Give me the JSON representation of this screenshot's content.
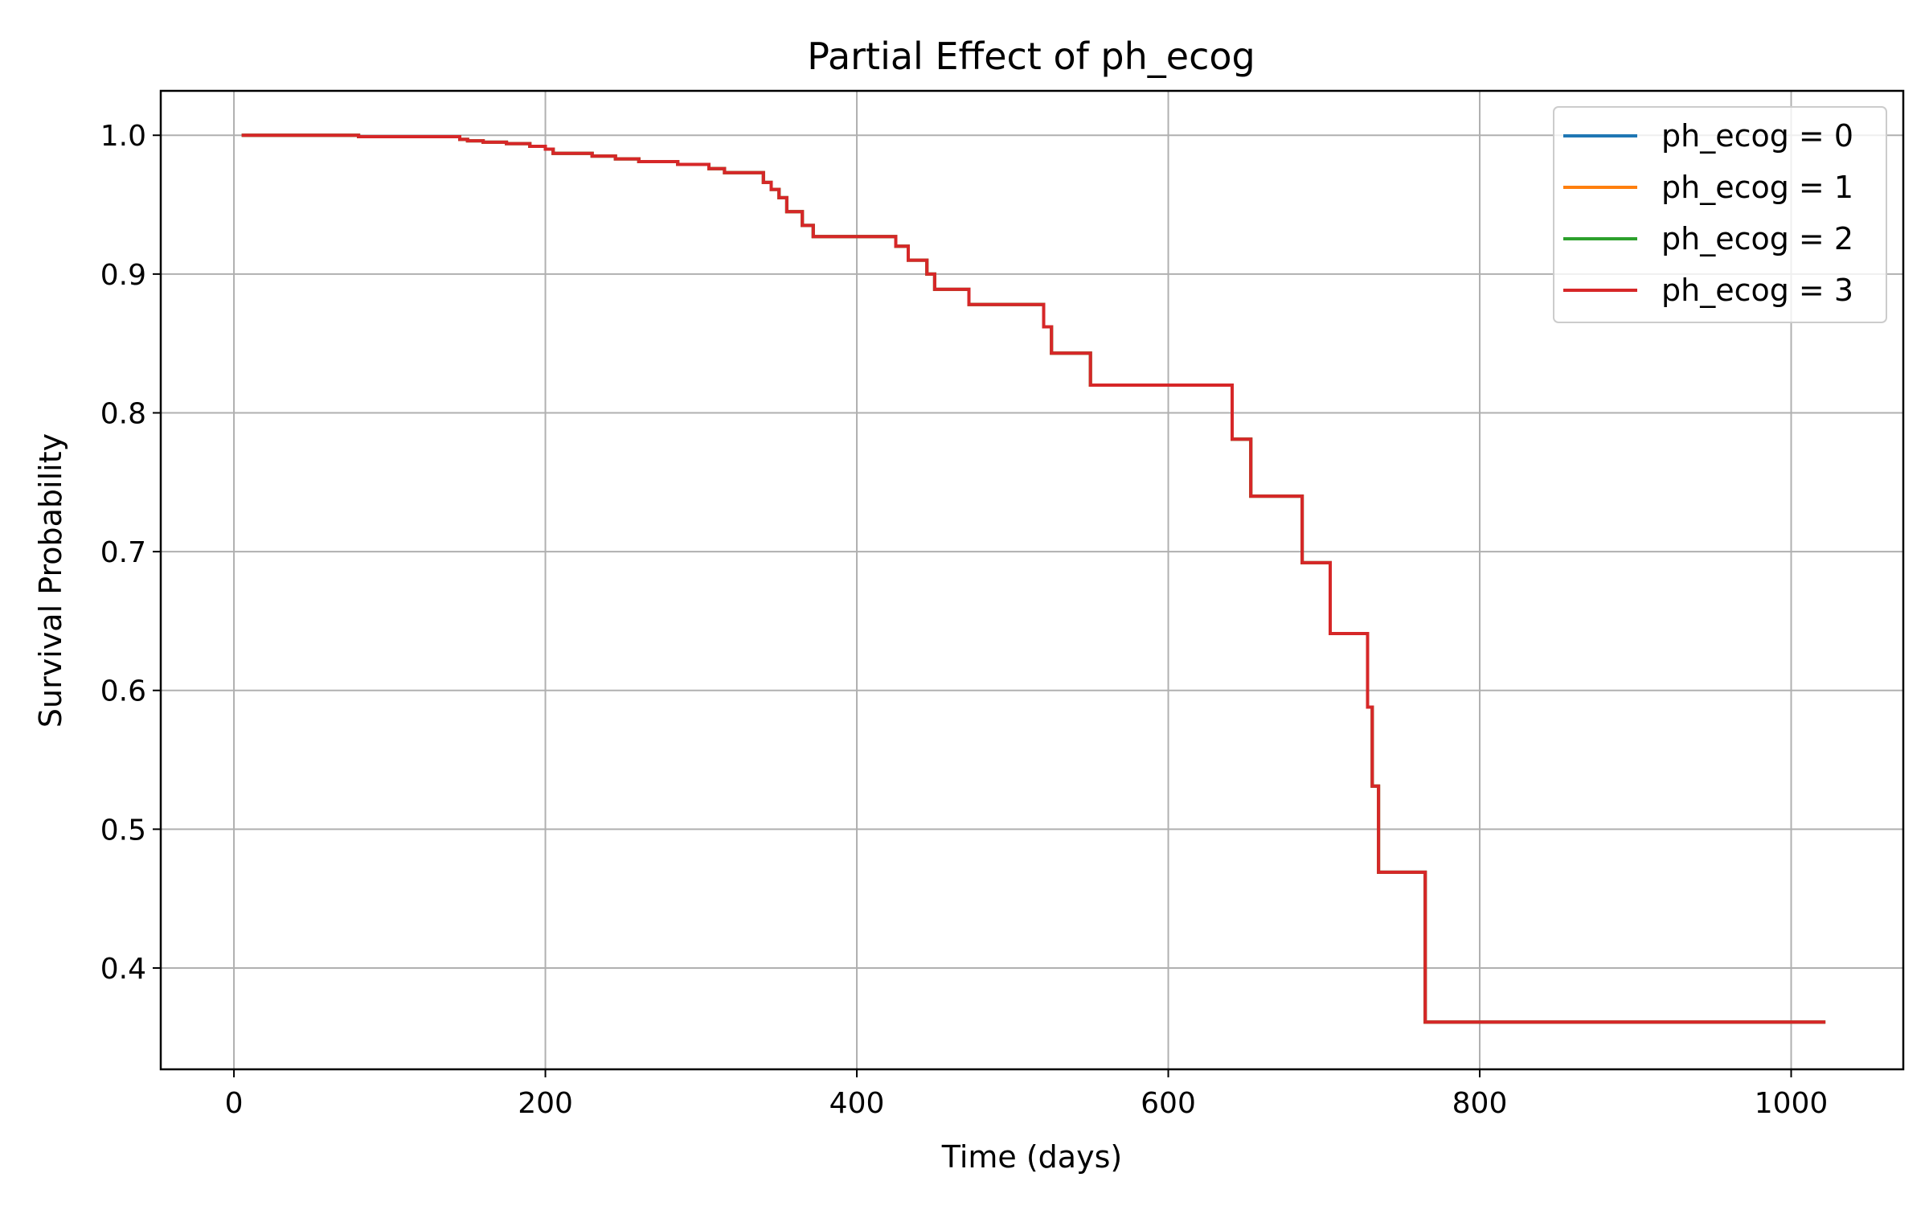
{
  "chart_data": {
    "type": "line",
    "title": "Partial Effect of ph_ecog",
    "xlabel": "Time (days)",
    "ylabel": "Survival Probability",
    "xlim": [
      -47,
      1072
    ],
    "ylim": [
      0.327,
      1.032
    ],
    "x_ticks": [
      0,
      200,
      400,
      600,
      800,
      1000
    ],
    "x_tick_labels": [
      "0",
      "200",
      "400",
      "600",
      "800",
      "1000"
    ],
    "y_ticks": [
      0.4,
      0.5,
      0.6,
      0.7,
      0.8,
      0.9,
      1.0
    ],
    "y_tick_labels": [
      "0.4",
      "0.5",
      "0.6",
      "0.7",
      "0.8",
      "0.9",
      "1.0"
    ],
    "grid": true,
    "legend_position": "top-right",
    "step": true,
    "series": [
      {
        "name": "ph_ecog = 0",
        "color": "#1f77b4",
        "points": [
          [
            5,
            1.0
          ],
          [
            55,
            1.0
          ],
          [
            80,
            0.999
          ],
          [
            145,
            0.997
          ],
          [
            150,
            0.996
          ],
          [
            160,
            0.995
          ],
          [
            175,
            0.994
          ],
          [
            190,
            0.992
          ],
          [
            200,
            0.99
          ],
          [
            205,
            0.987
          ],
          [
            230,
            0.985
          ],
          [
            245,
            0.983
          ],
          [
            260,
            0.981
          ],
          [
            285,
            0.979
          ],
          [
            305,
            0.976
          ],
          [
            315,
            0.973
          ],
          [
            340,
            0.966
          ],
          [
            345,
            0.961
          ],
          [
            350,
            0.955
          ],
          [
            355,
            0.945
          ],
          [
            365,
            0.935
          ],
          [
            372,
            0.927
          ],
          [
            425,
            0.92
          ],
          [
            433,
            0.91
          ],
          [
            445,
            0.9
          ],
          [
            450,
            0.889
          ],
          [
            472,
            0.878
          ],
          [
            520,
            0.862
          ],
          [
            525,
            0.843
          ],
          [
            550,
            0.82
          ],
          [
            641,
            0.781
          ],
          [
            653,
            0.74
          ],
          [
            686,
            0.692
          ],
          [
            704,
            0.641
          ],
          [
            728,
            0.588
          ],
          [
            731,
            0.531
          ],
          [
            735,
            0.469
          ],
          [
            765,
            0.361
          ],
          [
            1022,
            0.361
          ]
        ]
      },
      {
        "name": "ph_ecog = 1",
        "color": "#ff7f0e",
        "points": [
          [
            5,
            1.0
          ],
          [
            55,
            1.0
          ],
          [
            80,
            0.999
          ],
          [
            145,
            0.997
          ],
          [
            150,
            0.996
          ],
          [
            160,
            0.995
          ],
          [
            175,
            0.994
          ],
          [
            190,
            0.992
          ],
          [
            200,
            0.99
          ],
          [
            205,
            0.987
          ],
          [
            230,
            0.985
          ],
          [
            245,
            0.983
          ],
          [
            260,
            0.981
          ],
          [
            285,
            0.979
          ],
          [
            305,
            0.976
          ],
          [
            315,
            0.973
          ],
          [
            340,
            0.966
          ],
          [
            345,
            0.961
          ],
          [
            350,
            0.955
          ],
          [
            355,
            0.945
          ],
          [
            365,
            0.935
          ],
          [
            372,
            0.927
          ],
          [
            425,
            0.92
          ],
          [
            433,
            0.91
          ],
          [
            445,
            0.9
          ],
          [
            450,
            0.889
          ],
          [
            472,
            0.878
          ],
          [
            520,
            0.862
          ],
          [
            525,
            0.843
          ],
          [
            550,
            0.82
          ],
          [
            641,
            0.781
          ],
          [
            653,
            0.74
          ],
          [
            686,
            0.692
          ],
          [
            704,
            0.641
          ],
          [
            728,
            0.588
          ],
          [
            731,
            0.531
          ],
          [
            735,
            0.469
          ],
          [
            765,
            0.361
          ],
          [
            1022,
            0.361
          ]
        ]
      },
      {
        "name": "ph_ecog = 2",
        "color": "#2ca02c",
        "points": [
          [
            5,
            1.0
          ],
          [
            55,
            1.0
          ],
          [
            80,
            0.999
          ],
          [
            145,
            0.997
          ],
          [
            150,
            0.996
          ],
          [
            160,
            0.995
          ],
          [
            175,
            0.994
          ],
          [
            190,
            0.992
          ],
          [
            200,
            0.99
          ],
          [
            205,
            0.987
          ],
          [
            230,
            0.985
          ],
          [
            245,
            0.983
          ],
          [
            260,
            0.981
          ],
          [
            285,
            0.979
          ],
          [
            305,
            0.976
          ],
          [
            315,
            0.973
          ],
          [
            340,
            0.966
          ],
          [
            345,
            0.961
          ],
          [
            350,
            0.955
          ],
          [
            355,
            0.945
          ],
          [
            365,
            0.935
          ],
          [
            372,
            0.927
          ],
          [
            425,
            0.92
          ],
          [
            433,
            0.91
          ],
          [
            445,
            0.9
          ],
          [
            450,
            0.889
          ],
          [
            472,
            0.878
          ],
          [
            520,
            0.862
          ],
          [
            525,
            0.843
          ],
          [
            550,
            0.82
          ],
          [
            641,
            0.781
          ],
          [
            653,
            0.74
          ],
          [
            686,
            0.692
          ],
          [
            704,
            0.641
          ],
          [
            728,
            0.588
          ],
          [
            731,
            0.531
          ],
          [
            735,
            0.469
          ],
          [
            765,
            0.361
          ],
          [
            1022,
            0.361
          ]
        ]
      },
      {
        "name": "ph_ecog = 3",
        "color": "#d62728",
        "points": [
          [
            5,
            1.0
          ],
          [
            55,
            1.0
          ],
          [
            80,
            0.999
          ],
          [
            145,
            0.997
          ],
          [
            150,
            0.996
          ],
          [
            160,
            0.995
          ],
          [
            175,
            0.994
          ],
          [
            190,
            0.992
          ],
          [
            200,
            0.99
          ],
          [
            205,
            0.987
          ],
          [
            230,
            0.985
          ],
          [
            245,
            0.983
          ],
          [
            260,
            0.981
          ],
          [
            285,
            0.979
          ],
          [
            305,
            0.976
          ],
          [
            315,
            0.973
          ],
          [
            340,
            0.966
          ],
          [
            345,
            0.961
          ],
          [
            350,
            0.955
          ],
          [
            355,
            0.945
          ],
          [
            365,
            0.935
          ],
          [
            372,
            0.927
          ],
          [
            425,
            0.92
          ],
          [
            433,
            0.91
          ],
          [
            445,
            0.9
          ],
          [
            450,
            0.889
          ],
          [
            472,
            0.878
          ],
          [
            520,
            0.862
          ],
          [
            525,
            0.843
          ],
          [
            550,
            0.82
          ],
          [
            641,
            0.781
          ],
          [
            653,
            0.74
          ],
          [
            686,
            0.692
          ],
          [
            704,
            0.641
          ],
          [
            728,
            0.588
          ],
          [
            731,
            0.531
          ],
          [
            735,
            0.469
          ],
          [
            765,
            0.361
          ],
          [
            1022,
            0.361
          ]
        ]
      }
    ]
  }
}
